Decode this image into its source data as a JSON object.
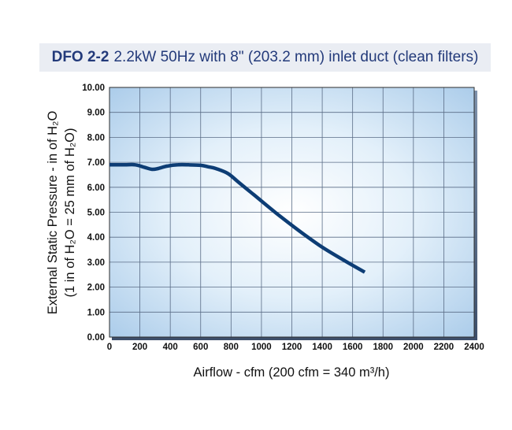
{
  "chart_data": {
    "type": "line",
    "title_bold": "DFO 2-2",
    "title": "2.2kW 50Hz with 8\" (203.2 mm) inlet duct (clean filters)",
    "xlabel": "Airflow - cfm (200 cfm = 340 m³/h)",
    "ylabel_line1": "External Static Pressure - in of H₂O",
    "ylabel_line2": "(1 in of H₂O = 25 mm of H₂O)",
    "xlim": [
      0,
      2400
    ],
    "ylim": [
      0,
      10
    ],
    "x_ticks": [
      "0",
      "200",
      "400",
      "600",
      "800",
      "1000",
      "1200",
      "1400",
      "1600",
      "1800",
      "2000",
      "2200",
      "2400"
    ],
    "y_ticks": [
      "0.00",
      "1.00",
      "2.00",
      "3.00",
      "4.00",
      "5.00",
      "6.00",
      "7.00",
      "8.00",
      "9.00",
      "10.00"
    ],
    "grid": true,
    "series": [
      {
        "color": "#0d3d75",
        "x": [
          0,
          100,
          170,
          230,
          280,
          320,
          380,
          450,
          520,
          600,
          650,
          700,
          780,
          850,
          950,
          1100,
          1250,
          1400,
          1550,
          1680
        ],
        "y": [
          6.9,
          6.9,
          6.9,
          6.8,
          6.72,
          6.75,
          6.85,
          6.9,
          6.9,
          6.88,
          6.82,
          6.75,
          6.55,
          6.2,
          5.7,
          4.95,
          4.25,
          3.6,
          3.05,
          2.6
        ]
      }
    ]
  }
}
